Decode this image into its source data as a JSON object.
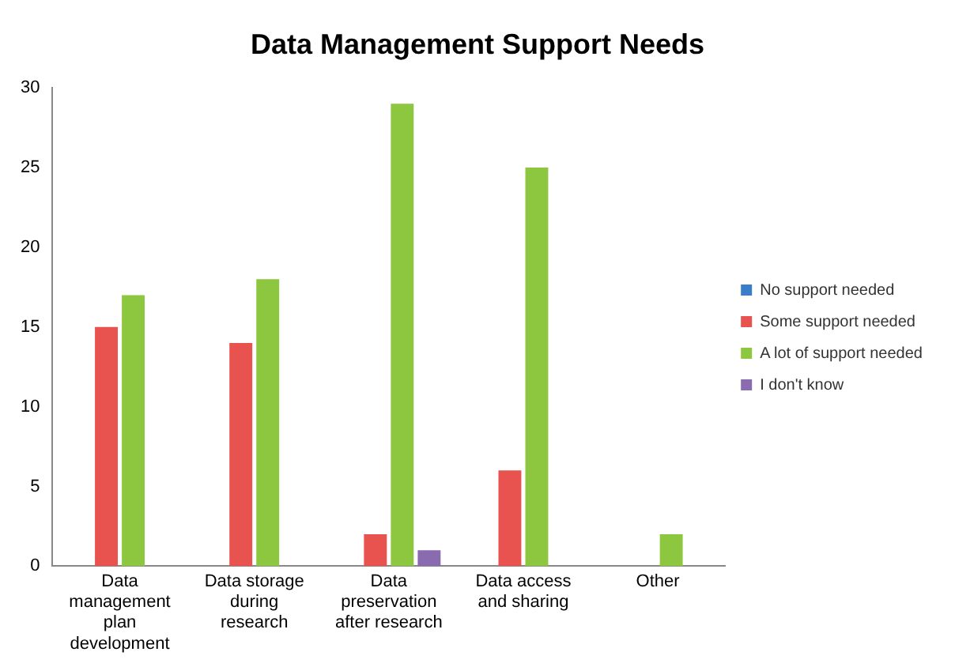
{
  "chart_data": {
    "type": "bar",
    "title": "Data Management Support Needs",
    "categories": [
      "Data management plan development",
      "Data storage during research",
      "Data preservation after research",
      "Data access and sharing",
      "Other"
    ],
    "series": [
      {
        "name": "No support needed",
        "color": "#3a7dc9",
        "values": [
          0,
          0,
          0,
          0,
          0
        ]
      },
      {
        "name": "Some support needed",
        "color": "#e9534f",
        "values": [
          15,
          14,
          2,
          6,
          0
        ]
      },
      {
        "name": "A lot of support needed",
        "color": "#8dc63f",
        "values": [
          17,
          18,
          29,
          25,
          2
        ]
      },
      {
        "name": "I don't know",
        "color": "#8a6bb0",
        "values": [
          0,
          0,
          1,
          0,
          0
        ]
      }
    ],
    "ylim": [
      0,
      30
    ],
    "yticks": [
      0,
      5,
      10,
      15,
      20,
      25,
      30
    ],
    "grid": false,
    "legend": "right"
  }
}
